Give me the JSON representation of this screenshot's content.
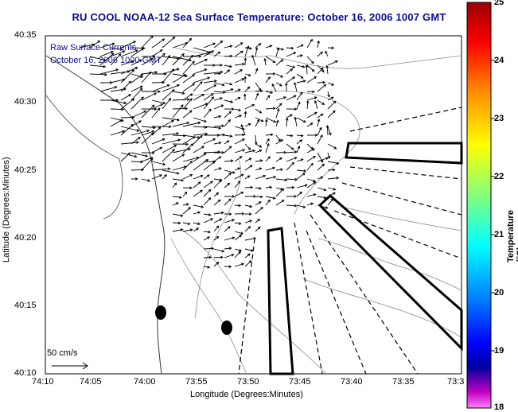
{
  "title": "RU COOL  NOAA-12  Sea Surface Temperature:  October 16, 2006 1007 GMT",
  "overlay": {
    "line1": "Raw Surface Currents",
    "line2": "October 16, 2006 1000 GMT"
  },
  "axes": {
    "xlabel": "Longitude (Degrees:Minutes)",
    "ylabel": "Latitude (Degrees:Minutes)",
    "xticks": [
      "74:10",
      "74:05",
      "74:00",
      "73:55",
      "73:50",
      "73:45",
      "73:40",
      "73:35",
      "73:3"
    ],
    "yticks": [
      "40:35",
      "40:30",
      "40:25",
      "40:20",
      "40:15",
      "40:10"
    ]
  },
  "scale_label": "50 cm/s",
  "colorbar": {
    "label": "Temperature (°C)",
    "ticks": [
      "25",
      "24",
      "23",
      "22",
      "21",
      "20",
      "19",
      "18"
    ],
    "colors": [
      "#9b0000",
      "#ff0000",
      "#ff8c00",
      "#ffff00",
      "#7fff7f",
      "#00ffff",
      "#0080ff",
      "#0000ff",
      "#0000a0",
      "#ff00ff"
    ]
  },
  "colors": {
    "title": "#0b0b99",
    "land_mask": "#ffffff",
    "contour": "#8c8c8c",
    "vector": "#000000"
  }
}
